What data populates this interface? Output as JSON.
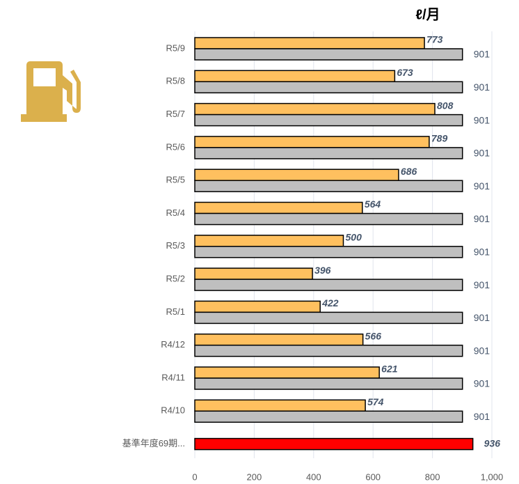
{
  "chart_data": {
    "type": "bar",
    "orientation": "horizontal",
    "title": "ℓ/月",
    "categories": [
      "R5/9",
      "R5/8",
      "R5/7",
      "R5/6",
      "R5/5",
      "R5/4",
      "R5/3",
      "R5/2",
      "R5/1",
      "R4/12",
      "R4/11",
      "R4/10",
      "基準年度69期..."
    ],
    "series": [
      {
        "color": "#ffc05f",
        "values": [
          773,
          673,
          808,
          789,
          686,
          564,
          500,
          396,
          422,
          566,
          621,
          574,
          null
        ]
      },
      {
        "color": "#bfbfbf",
        "values": [
          901,
          901,
          901,
          901,
          901,
          901,
          901,
          901,
          901,
          901,
          901,
          901,
          null
        ]
      },
      {
        "color": "#ff0000",
        "values": [
          null,
          null,
          null,
          null,
          null,
          null,
          null,
          null,
          null,
          null,
          null,
          null,
          936
        ]
      }
    ],
    "xlim": [
      0,
      1000
    ],
    "xticks": [
      0,
      200,
      400,
      600,
      800,
      {
        "value": 1000,
        "label": "1,000"
      }
    ],
    "grid": true
  }
}
